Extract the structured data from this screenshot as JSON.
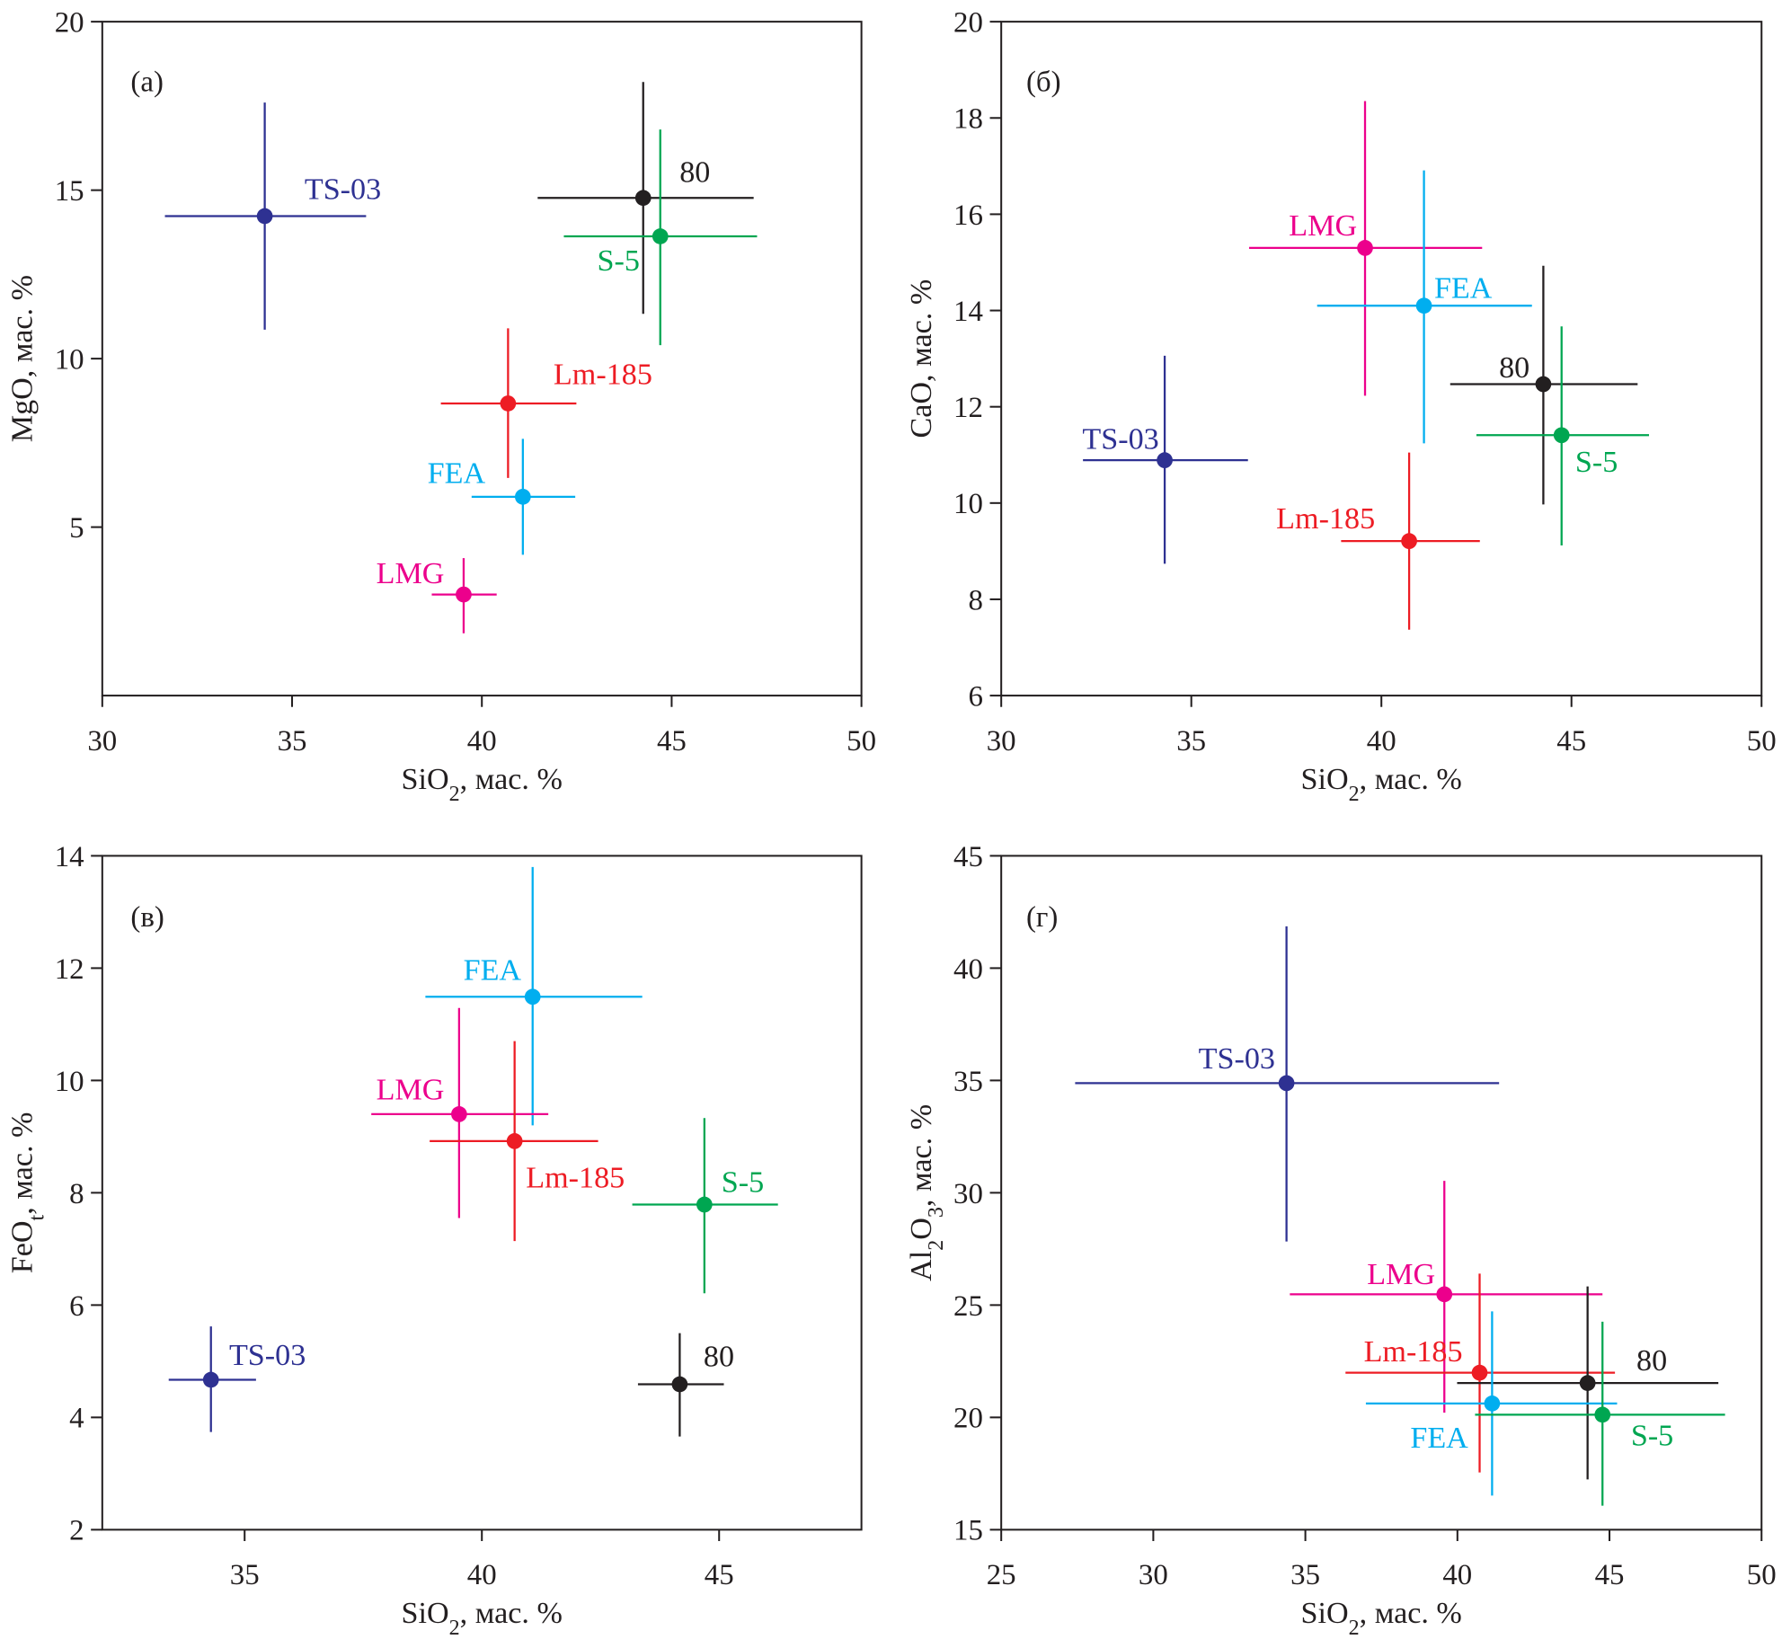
{
  "chart_data": [
    {
      "type": "scatter",
      "panel_label": "(а)",
      "xlabel": [
        {
          "t": "SiO"
        },
        {
          "t": "2",
          "sub": true
        },
        {
          "t": ", мас. %"
        }
      ],
      "ylabel": [
        {
          "t": "MgO, мас. %"
        }
      ],
      "xlim": [
        30,
        50
      ],
      "ylim": [
        0,
        20
      ],
      "xticks": [
        30,
        35,
        40,
        45,
        50
      ],
      "yticks": [
        5,
        10,
        15,
        20
      ],
      "grid": false,
      "series": [
        {
          "name": "TS-03",
          "color": "#2e3192",
          "x": 34.28,
          "y": 14.23,
          "xerr": [
            31.65,
            36.95
          ],
          "yerr": [
            10.86,
            17.6
          ]
        },
        {
          "name": "80",
          "color": "#231f20",
          "x": 44.25,
          "y": 14.77,
          "xerr": [
            41.47,
            47.16
          ],
          "yerr": [
            11.33,
            18.21
          ]
        },
        {
          "name": "S-5",
          "color": "#00a651",
          "x": 44.7,
          "y": 13.63,
          "xerr": [
            42.16,
            47.25
          ],
          "yerr": [
            10.4,
            16.8
          ]
        },
        {
          "name": "Lm-185",
          "color": "#ed1c24",
          "x": 40.69,
          "y": 8.67,
          "xerr": [
            38.92,
            42.49
          ],
          "yerr": [
            6.46,
            10.9
          ]
        },
        {
          "name": "FEA",
          "color": "#00aeef",
          "x": 41.08,
          "y": 5.9,
          "xerr": [
            39.73,
            42.46
          ],
          "yerr": [
            4.18,
            7.62
          ]
        },
        {
          "name": "LMG",
          "color": "#ec008c",
          "x": 39.52,
          "y": 3.0,
          "xerr": [
            38.68,
            40.39
          ],
          "yerr": [
            1.85,
            4.08
          ]
        }
      ]
    },
    {
      "type": "scatter",
      "panel_label": "(б)",
      "xlabel": [
        {
          "t": "SiO"
        },
        {
          "t": "2",
          "sub": true
        },
        {
          "t": ", мас. %"
        }
      ],
      "ylabel": [
        {
          "t": "CaO, мас. %"
        }
      ],
      "xlim": [
        30,
        50
      ],
      "ylim": [
        6,
        20
      ],
      "xticks": [
        30,
        35,
        40,
        45,
        50
      ],
      "yticks": [
        6,
        8,
        10,
        12,
        14,
        16,
        18,
        20
      ],
      "grid": false,
      "series": [
        {
          "name": "LMG",
          "color": "#ec008c",
          "x": 39.57,
          "y": 15.3,
          "xerr": [
            36.52,
            42.65
          ],
          "yerr": [
            12.23,
            18.35
          ]
        },
        {
          "name": "FEA",
          "color": "#00aeef",
          "x": 41.12,
          "y": 14.1,
          "xerr": [
            38.31,
            43.96
          ],
          "yerr": [
            11.24,
            16.91
          ]
        },
        {
          "name": "80",
          "color": "#231f20",
          "x": 44.26,
          "y": 12.47,
          "xerr": [
            41.81,
            46.74
          ],
          "yerr": [
            9.97,
            14.93
          ]
        },
        {
          "name": "S-5",
          "color": "#00a651",
          "x": 44.74,
          "y": 11.41,
          "xerr": [
            42.5,
            47.04
          ],
          "yerr": [
            9.12,
            13.67
          ]
        },
        {
          "name": "TS-03",
          "color": "#2e3192",
          "x": 34.3,
          "y": 10.89,
          "xerr": [
            32.15,
            36.49
          ],
          "yerr": [
            8.74,
            13.06
          ]
        },
        {
          "name": "Lm-185",
          "color": "#ed1c24",
          "x": 40.73,
          "y": 9.21,
          "xerr": [
            38.94,
            42.59
          ],
          "yerr": [
            7.37,
            11.05
          ]
        }
      ]
    },
    {
      "type": "scatter",
      "panel_label": "(в)",
      "xlabel": [
        {
          "t": "SiO"
        },
        {
          "t": "2",
          "sub": true
        },
        {
          "t": ", мас. %"
        }
      ],
      "ylabel": [
        {
          "t": "FeO"
        },
        {
          "t": "t",
          "sub": true
        },
        {
          "t": ", мас. %"
        }
      ],
      "xlim": [
        32,
        48
      ],
      "ylim": [
        2,
        14
      ],
      "xticks": [
        35,
        40,
        45
      ],
      "yticks": [
        2,
        4,
        6,
        8,
        10,
        12,
        14
      ],
      "grid": false,
      "series": [
        {
          "name": "FEA",
          "color": "#00aeef",
          "x": 41.07,
          "y": 11.49,
          "xerr": [
            38.81,
            43.38
          ],
          "yerr": [
            9.2,
            13.8
          ]
        },
        {
          "name": "LMG",
          "color": "#ec008c",
          "x": 39.52,
          "y": 9.4,
          "xerr": [
            37.67,
            41.4
          ],
          "yerr": [
            7.55,
            11.29
          ]
        },
        {
          "name": "Lm-185",
          "color": "#ed1c24",
          "x": 40.69,
          "y": 8.92,
          "xerr": [
            38.9,
            42.45
          ],
          "yerr": [
            7.14,
            10.7
          ]
        },
        {
          "name": "S-5",
          "color": "#00a651",
          "x": 44.69,
          "y": 7.79,
          "xerr": [
            43.17,
            46.24
          ],
          "yerr": [
            6.21,
            9.33
          ]
        },
        {
          "name": "TS-03",
          "color": "#2e3192",
          "x": 34.29,
          "y": 4.67,
          "xerr": [
            33.4,
            35.24
          ],
          "yerr": [
            3.74,
            5.62
          ]
        },
        {
          "name": "80",
          "color": "#231f20",
          "x": 44.17,
          "y": 4.59,
          "xerr": [
            43.29,
            45.1
          ],
          "yerr": [
            3.66,
            5.5
          ]
        }
      ]
    },
    {
      "type": "scatter",
      "panel_label": "(г)",
      "xlabel": [
        {
          "t": "SiO"
        },
        {
          "t": "2",
          "sub": true
        },
        {
          "t": ", мас. %"
        }
      ],
      "ylabel": [
        {
          "t": "Al"
        },
        {
          "t": "2",
          "sub": true
        },
        {
          "t": "O"
        },
        {
          "t": "3",
          "sub": true
        },
        {
          "t": ", мас. %"
        }
      ],
      "xlim": [
        25,
        50
      ],
      "ylim": [
        15,
        45
      ],
      "xticks": [
        25,
        30,
        35,
        40,
        45,
        50
      ],
      "yticks": [
        15,
        20,
        25,
        30,
        35,
        40,
        45
      ],
      "grid": false,
      "series": [
        {
          "name": "TS-03",
          "color": "#2e3192",
          "x": 34.38,
          "y": 34.88,
          "xerr": [
            27.43,
            41.37
          ],
          "yerr": [
            27.83,
            41.86
          ]
        },
        {
          "name": "LMG",
          "color": "#ec008c",
          "x": 39.57,
          "y": 25.48,
          "xerr": [
            34.49,
            44.77
          ],
          "yerr": [
            20.21,
            30.53
          ]
        },
        {
          "name": "Lm-185",
          "color": "#ed1c24",
          "x": 40.73,
          "y": 21.99,
          "xerr": [
            36.32,
            45.18
          ],
          "yerr": [
            17.55,
            26.4
          ]
        },
        {
          "name": "80",
          "color": "#231f20",
          "x": 44.28,
          "y": 21.53,
          "xerr": [
            39.99,
            48.58
          ],
          "yerr": [
            17.24,
            25.83
          ]
        },
        {
          "name": "FEA",
          "color": "#00aeef",
          "x": 41.14,
          "y": 20.62,
          "xerr": [
            36.99,
            45.25
          ],
          "yerr": [
            16.52,
            24.72
          ]
        },
        {
          "name": "S-5",
          "color": "#00a651",
          "x": 44.77,
          "y": 20.12,
          "xerr": [
            40.58,
            48.8
          ],
          "yerr": [
            16.07,
            24.26
          ]
        }
      ]
    }
  ]
}
